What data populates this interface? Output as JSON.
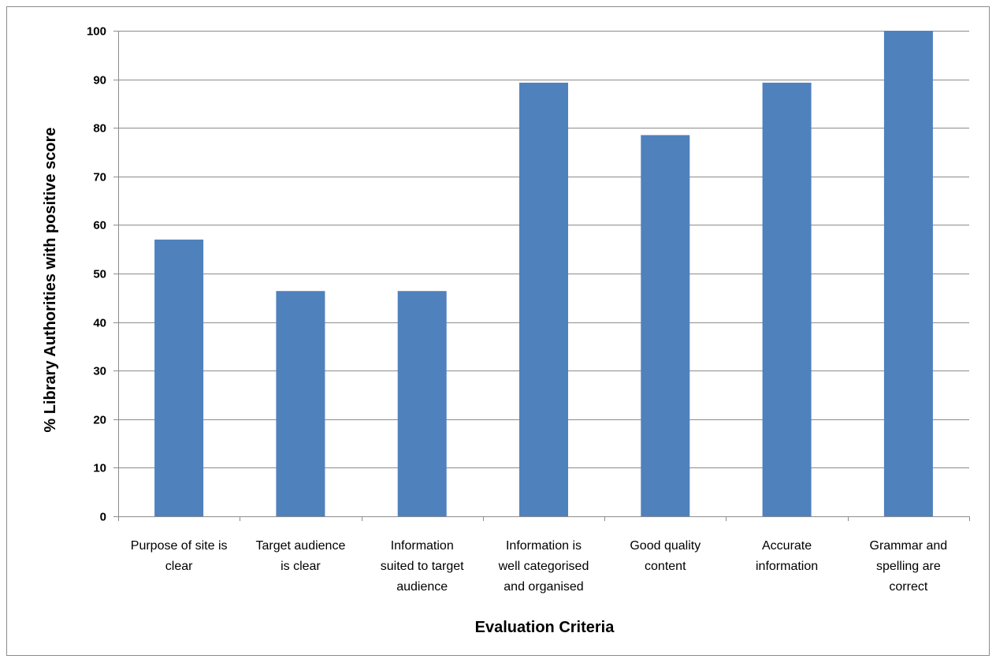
{
  "chart_data": {
    "type": "bar",
    "xlabel": "Evaluation Criteria",
    "ylabel": "% Library Authorities with positive score",
    "ylim": [
      0,
      100
    ],
    "ytick_step": 10,
    "grid": true,
    "bar_color": "#4f81bd",
    "categories": [
      [
        "Purpose of site is",
        "clear"
      ],
      [
        "Target audience",
        "is clear"
      ],
      [
        "Information",
        "suited to target",
        "audience"
      ],
      [
        "Information is",
        "well categorised",
        "and organised"
      ],
      [
        "Good quality",
        "content"
      ],
      [
        "Accurate",
        "information"
      ],
      [
        "Grammar and",
        "spelling are",
        "correct"
      ]
    ],
    "values": [
      57,
      46.4,
      46.4,
      89.3,
      78.5,
      89.3,
      100
    ]
  }
}
